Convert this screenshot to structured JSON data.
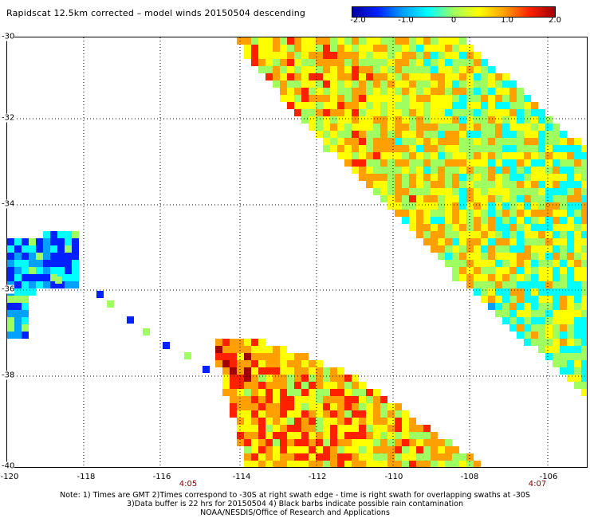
{
  "title": "Rapidscat 12.5km corrected – model winds 20150504 descending",
  "colorbar": {
    "colors": [
      "#0000a0",
      "#0020ff",
      "#00a0ff",
      "#00ffff",
      "#a0ff60",
      "#ffff00",
      "#ffa000",
      "#ff2000",
      "#a00000"
    ],
    "ticks": [
      "-2.0",
      "-1.0",
      "0",
      "1.0",
      "2.0"
    ]
  },
  "map": {
    "lat_labels": [
      "-30",
      "-32",
      "-34",
      "-36",
      "-38",
      "-40"
    ],
    "lon_labels": [
      "-120",
      "-118",
      "-116",
      "-114",
      "-112",
      "-110",
      "-108",
      "-106"
    ],
    "time_labels": [
      "4:05",
      "4:07"
    ],
    "grid": "dotted"
  },
  "notes": [
    "Note: 1) Times are GMT 2)Times correspond to -30S at right swath edge - time is right swath for overlapping swaths at -30S",
    "3)Data buffer is 22 hrs for 20150504 4) Black barbs indicate possible rain contamination",
    "NOAA/NESDIS/Office of Research and Applications"
  ]
}
